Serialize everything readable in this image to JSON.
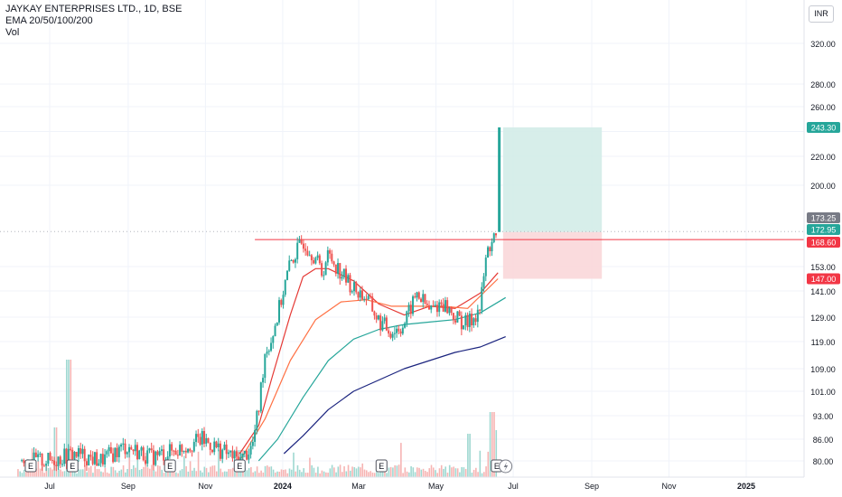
{
  "legend": {
    "title": "JAYKAY ENTERPRISES LTD., 1D, BSE",
    "indicator": "EMA 20/50/100/200",
    "volume": "Vol"
  },
  "currency": "INR",
  "colors": {
    "up": "#26a69a",
    "down": "#ef5350",
    "ema20": "#e53935",
    "ema50": "#ff7043",
    "ema100": "#26a69a",
    "ema200": "#1a237e",
    "resistance": "#f23645",
    "target_zone": "#d3ece8",
    "stop_zone": "#f9d7d9"
  },
  "chart_data": {
    "type": "candlestick",
    "price_scale": {
      "min": 77,
      "max": 330,
      "ticks": [
        80,
        86,
        93,
        101,
        109,
        119,
        129,
        141,
        153,
        200,
        220,
        260,
        280,
        320
      ],
      "tick_labels": [
        "80.00",
        "86.00",
        "93.00",
        "101.00",
        "109.00",
        "119.00",
        "129.00",
        "141.00",
        "153.00",
        "200.00",
        "220.00",
        "260.00",
        "280.00",
        "320.00"
      ]
    },
    "time_axis": {
      "labels": [
        "Jul",
        "Sep",
        "Nov",
        "2024",
        "Mar",
        "May",
        "Jul",
        "Sep",
        "Nov",
        "2025"
      ],
      "label_days": [
        0,
        62,
        123,
        184,
        244,
        305,
        366,
        428,
        489,
        550
      ],
      "bold_labels": [
        "2024",
        "2025"
      ]
    },
    "price_labels": [
      {
        "value": 243.3,
        "text": "243.30",
        "color": "#26a69a"
      },
      {
        "value": 173.25,
        "text": "173.25",
        "color": "#787b86"
      },
      {
        "value": 172.95,
        "text": "172.95",
        "color": "#26a69a"
      },
      {
        "value": 168.6,
        "text": "168.60",
        "color": "#f23645"
      },
      {
        "value": 147.0,
        "text": "147.00",
        "color": "#f23645"
      }
    ],
    "resistance_line": {
      "value": 168.6,
      "from_day": 162
    },
    "position": {
      "entry": 172.95,
      "target": 243.3,
      "stop": 147.0,
      "from_day": 358,
      "to_day": 436
    },
    "breakout_candle": {
      "day": 355,
      "open": 173.0,
      "close": 243.3
    },
    "earnings_days": [
      -15,
      18,
      95,
      150,
      262,
      353
    ],
    "current_marker_day": 360,
    "series": [
      {
        "name": "Price",
        "type": "candlestick",
        "x": [
          0,
          20,
          40,
          60,
          80,
          100,
          120,
          140,
          150,
          160,
          165,
          170,
          175,
          180,
          190,
          200,
          210,
          215,
          220,
          230,
          240,
          250,
          260,
          270,
          280,
          290,
          300,
          310,
          320,
          330,
          340,
          345,
          350,
          354
        ],
        "close": [
          80,
          82,
          80,
          84,
          81,
          83,
          86,
          82,
          80,
          84,
          95,
          115,
          120,
          130,
          155,
          168,
          158,
          150,
          160,
          150,
          142,
          138,
          127,
          123,
          126,
          140,
          132,
          136,
          129,
          126,
          133,
          160,
          170,
          167
        ]
      },
      {
        "name": "EMA 20",
        "type": "line",
        "x": [
          150,
          165,
          175,
          190,
          200,
          210,
          220,
          240,
          260,
          280,
          300,
          320,
          340,
          354
        ],
        "y": [
          82,
          90,
          105,
          130,
          148,
          152,
          152,
          146,
          135,
          130,
          134,
          133,
          140,
          150
        ]
      },
      {
        "name": "EMA 50",
        "type": "line",
        "x": [
          150,
          170,
          190,
          210,
          230,
          250,
          270,
          290,
          310,
          330,
          354
        ],
        "y": [
          80,
          92,
          112,
          128,
          136,
          137,
          134,
          134,
          134,
          133,
          147
        ]
      },
      {
        "name": "EMA 100",
        "type": "line",
        "x": [
          165,
          180,
          200,
          220,
          240,
          260,
          280,
          300,
          320,
          340,
          360
        ],
        "y": [
          80,
          86,
          99,
          112,
          120,
          124,
          126,
          127,
          128,
          131,
          138
        ]
      },
      {
        "name": "EMA 200",
        "type": "line",
        "x": [
          185,
          200,
          220,
          240,
          260,
          280,
          300,
          320,
          340,
          360
        ],
        "y": [
          82,
          87,
          95,
          101,
          105,
          109,
          112,
          115,
          117,
          121
        ]
      }
    ]
  }
}
